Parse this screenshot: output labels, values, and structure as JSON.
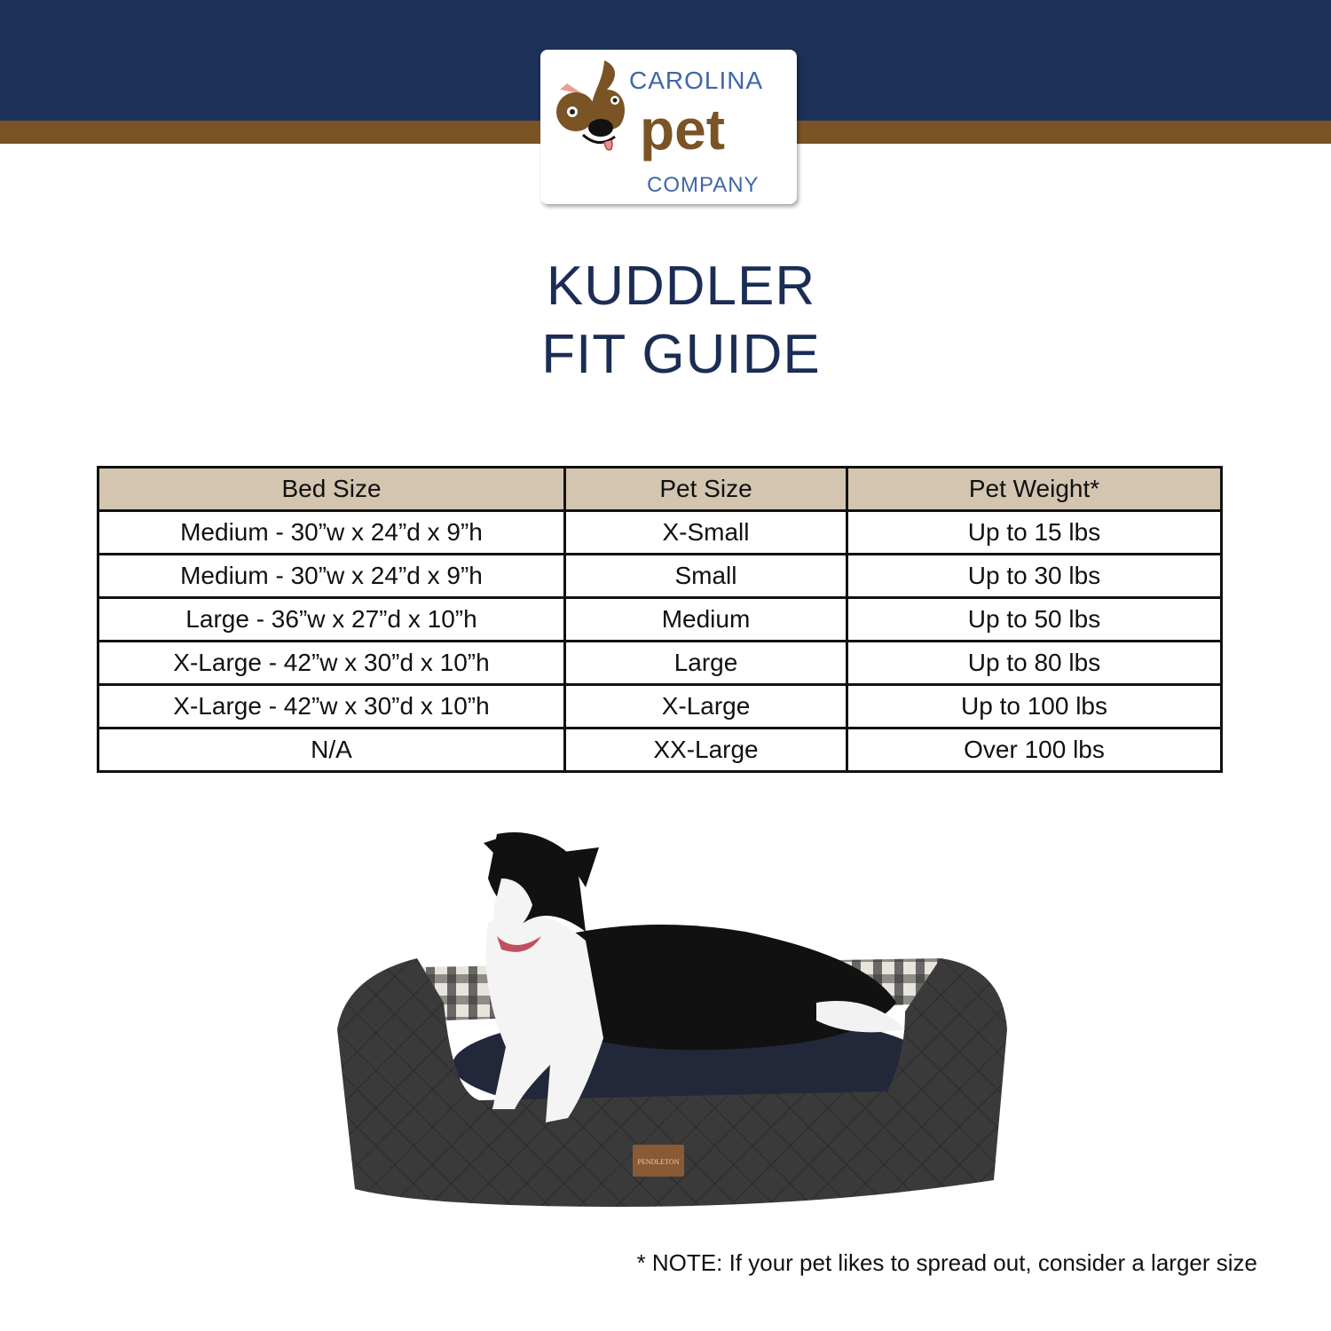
{
  "brand": {
    "logo_text_top": "CAROLINA",
    "logo_text_middle": "pet",
    "logo_text_bottom": "COMPANY",
    "colors": {
      "navy": "#1c3158",
      "brown": "#7a5425",
      "logo_blue": "#3f66a8",
      "header_tan": "#d3c5b0"
    }
  },
  "title": {
    "line1": "KUDDLER",
    "line2": "FIT GUIDE"
  },
  "table": {
    "headers": [
      "Bed Size",
      "Pet Size",
      "Pet Weight*"
    ],
    "rows": [
      [
        "Medium - 30”w x 24”d x 9”h",
        "X-Small",
        "Up to 15 lbs"
      ],
      [
        "Medium - 30”w x 24”d x 9”h",
        "Small",
        "Up to 30 lbs"
      ],
      [
        "Large - 36”w x 27”d x 10”h",
        "Medium",
        "Up to 50 lbs"
      ],
      [
        "X-Large - 42”w x 30”d x 10”h",
        "Large",
        "Up to 80 lbs"
      ],
      [
        "X-Large - 42”w x 30”d x 10”h",
        "X-Large",
        "Up to 100 lbs"
      ],
      [
        "N/A",
        "XX-Large",
        "Over 100 lbs"
      ]
    ]
  },
  "photo": {
    "label_text": "PENDLETON"
  },
  "note": "* NOTE: If your pet likes to spread out, consider a larger size"
}
